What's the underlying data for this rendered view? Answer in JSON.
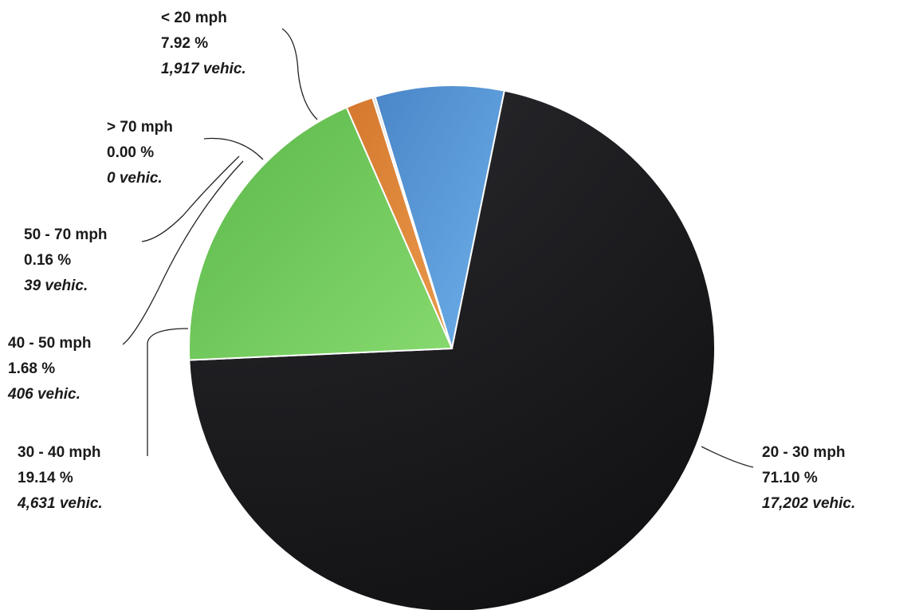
{
  "chart_data": {
    "type": "pie",
    "title": "",
    "slices": [
      {
        "category": "< 20 mph",
        "percent": 7.92,
        "percent_label": "7.92 %",
        "count": 1917,
        "count_label": "1,917 vehic.",
        "color": "#5b9bd5"
      },
      {
        "category": "20 - 30 mph",
        "percent": 71.1,
        "percent_label": "71.10 %",
        "count": 17202,
        "count_label": "17,202 vehic.",
        "color": "#1f1f22"
      },
      {
        "category": "30 - 40 mph",
        "percent": 19.14,
        "percent_label": "19.14 %",
        "count": 4631,
        "count_label": "4,631 vehic.",
        "color": "#6cc55a"
      },
      {
        "category": "40 - 50 mph",
        "percent": 1.68,
        "percent_label": "1.68 %",
        "count": 406,
        "count_label": "406 vehic.",
        "color": "#e0883a"
      },
      {
        "category": "50 - 70 mph",
        "percent": 0.16,
        "percent_label": "0.16 %",
        "count": 39,
        "count_label": "39 vehic.",
        "color": "#d9d9d9"
      },
      {
        "category": "> 70 mph",
        "percent": 0.0,
        "percent_label": "0.00 %",
        "count": 0,
        "count_label": "0 vehic.",
        "color": "#b0b0b0"
      }
    ]
  }
}
